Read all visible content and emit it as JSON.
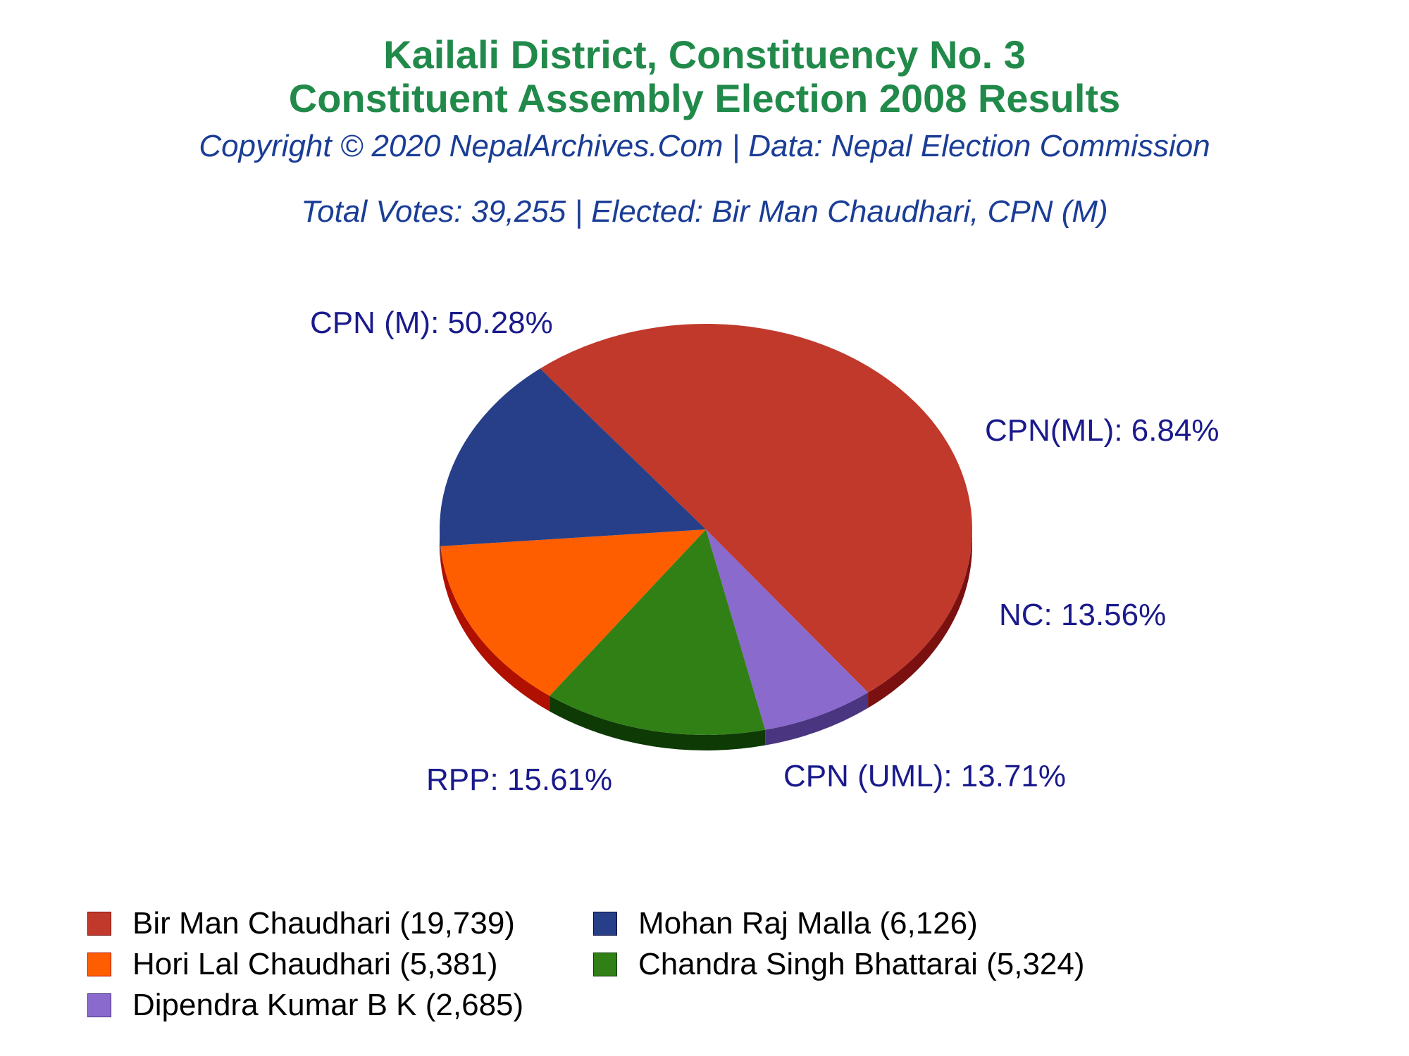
{
  "title_line1": "Kailali District, Constituency No. 3",
  "title_line2": "Constituent Assembly Election 2008 Results",
  "copyright": "Copyright © 2020 NepalArchives.Com | Data: Nepal Election Commission",
  "summary": "Total Votes: 39,255 | Elected: Bir Man Chaudhari, CPN (M)",
  "colors": {
    "title": "#218a4a",
    "subtitle": "#1a3d96",
    "slice_label": "#1a1a8c"
  },
  "chart_data": {
    "type": "pie",
    "style": "3d",
    "slices": [
      {
        "party": "CPN (M)",
        "percent": 50.28,
        "label": "CPN (M): 50.28%",
        "candidate": "Bir Man Chaudhari",
        "votes": 19739,
        "legend": "Bir Man Chaudhari (19,739)",
        "color": "#c0392b",
        "side_color": "#7a1010"
      },
      {
        "party": "CPN(ML)",
        "percent": 6.84,
        "label": "CPN(ML): 6.84%",
        "candidate": "Dipendra Kumar B K",
        "votes": 2685,
        "legend": "Dipendra Kumar B K (2,685)",
        "color": "#8a6acd",
        "side_color": "#4a3580"
      },
      {
        "party": "NC",
        "percent": 13.56,
        "label": "NC: 13.56%",
        "candidate": "Chandra Singh Bhattarai",
        "votes": 5324,
        "legend": "Chandra Singh Bhattarai (5,324)",
        "color": "#318016",
        "side_color": "#0e3a05"
      },
      {
        "party": "CPN (UML)",
        "percent": 13.71,
        "label": "CPN (UML): 13.71%",
        "candidate": "Hori Lal Chaudhari",
        "votes": 5381,
        "legend": "Hori Lal Chaudhari (5,381)",
        "color": "#fe5d00",
        "side_color": "#b01000"
      },
      {
        "party": "RPP",
        "percent": 15.61,
        "label": "RPP: 15.61%",
        "candidate": "Mohan Raj Malla",
        "votes": 6126,
        "legend": "Mohan Raj Malla (6,126)",
        "color": "#263f88",
        "side_color": "#0a0a3a"
      }
    ],
    "legend_order": [
      0,
      4,
      3,
      2,
      1
    ]
  }
}
